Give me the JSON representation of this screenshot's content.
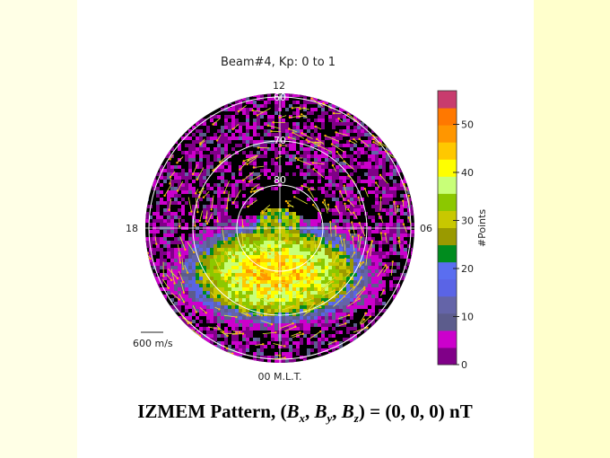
{
  "chart_data": {
    "type": "heatmap",
    "projection": "polar",
    "title": "Beam#4, Kp: 0 to 1",
    "mlt_labels": {
      "top": "12",
      "left": "18",
      "right": "06",
      "bottom": "00 M.L.T."
    },
    "latitude_rings": [
      {
        "lat": 60,
        "label": "60"
      },
      {
        "lat": 70,
        "label": "70"
      },
      {
        "lat": 80,
        "label": "80"
      }
    ],
    "colorbar": {
      "label": "#Points",
      "range": [
        0,
        57
      ],
      "ticks": [
        "0",
        "10",
        "20",
        "30",
        "40",
        "50"
      ],
      "tick_values": [
        0,
        10,
        20,
        30,
        40,
        50
      ],
      "levels": [
        "#800088",
        "#cc00cc",
        "#5c5c8c",
        "#6464a8",
        "#5a64e6",
        "#5a6ef0",
        "#008c1e",
        "#9a9a00",
        "#c8c800",
        "#8cc800",
        "#c8ff78",
        "#ffff00",
        "#ffc800",
        "#ff9600",
        "#ff7800",
        "#c83c6e"
      ]
    },
    "vector_scale_label": "600 m/s",
    "vector_color": "#e6e632"
  },
  "caption": {
    "prefix": "IZMEM Pattern, (",
    "b1": "B",
    "s1": "x",
    "sep1": ", ",
    "b2": "B",
    "s2": "y",
    "sep2": ", ",
    "b3": "B",
    "s3": "z",
    "suffix": ") = (0, 0, 0) nT"
  }
}
